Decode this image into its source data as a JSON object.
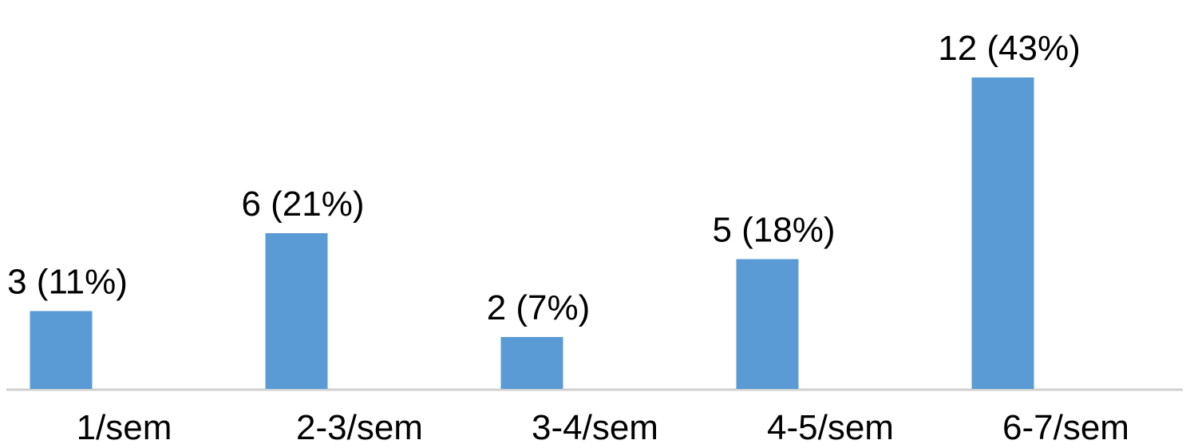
{
  "chart_data": {
    "type": "bar",
    "categories": [
      "1/sem",
      "2-3/sem",
      "3-4/sem",
      "4-5/sem",
      "6-7/sem"
    ],
    "values": [
      3,
      6,
      2,
      5,
      12
    ],
    "value_labels": [
      "3 (11%)",
      "6 (21%)",
      "2 (7%)",
      "5 (18%)",
      "12 (43%)"
    ],
    "color": "#5b9bd5"
  }
}
